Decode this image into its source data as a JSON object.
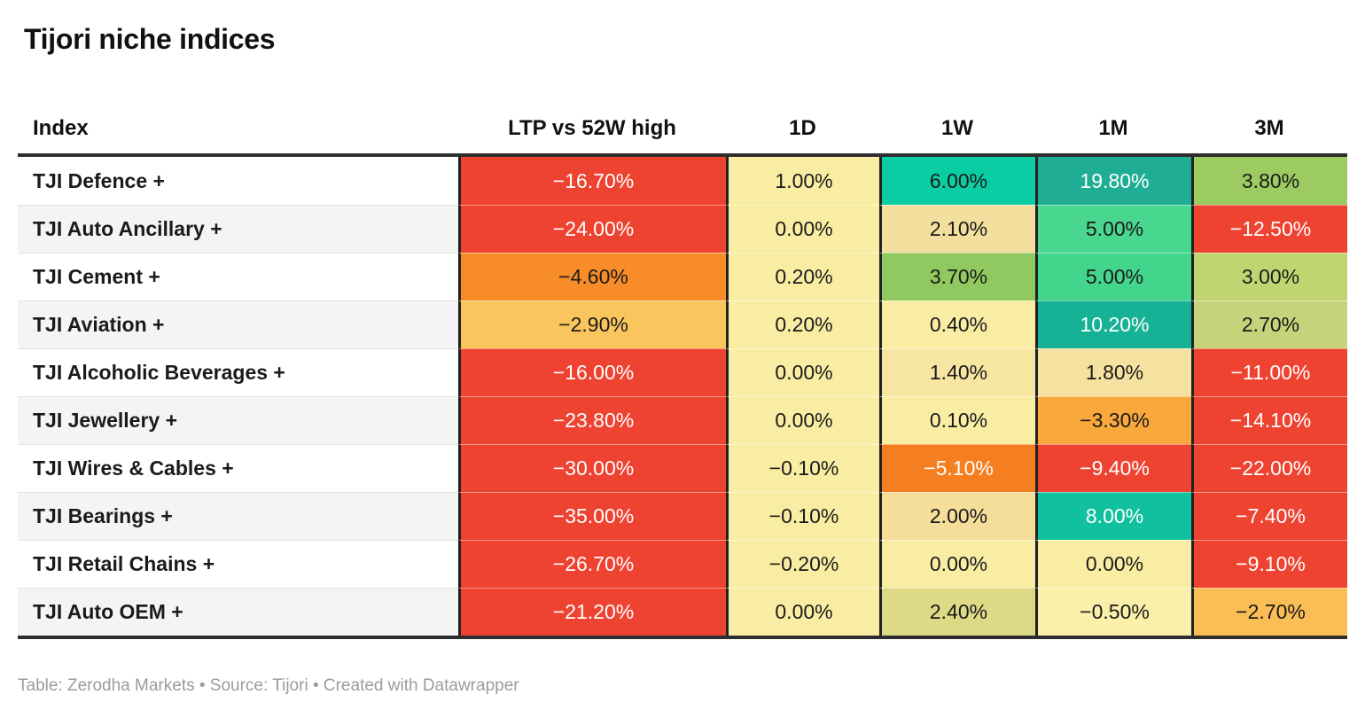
{
  "title": "Tijori niche indices",
  "footer": "Table: Zerodha Markets • Source: Tijori • Created with Datawrapper",
  "table": {
    "header": {
      "columns": [
        "Index",
        "LTP vs 52W high",
        "1D",
        "1W",
        "1M",
        "3M"
      ]
    },
    "rows": [
      {
        "name": "TJI Defence +",
        "cells": [
          {
            "v": "−16.70%",
            "bg": "#ee4331",
            "fg": "#ffffff"
          },
          {
            "v": "1.00%",
            "bg": "#f9eda3",
            "fg": "#1a1a1a"
          },
          {
            "v": "6.00%",
            "bg": "#0bcda4",
            "fg": "#1a1a1a"
          },
          {
            "v": "19.80%",
            "bg": "#1fae93",
            "fg": "#ffffff"
          },
          {
            "v": "3.80%",
            "bg": "#9ccb62",
            "fg": "#1a1a1a"
          }
        ]
      },
      {
        "name": "TJI Auto Ancillary +",
        "cells": [
          {
            "v": "−24.00%",
            "bg": "#ee4331",
            "fg": "#ffffff"
          },
          {
            "v": "0.00%",
            "bg": "#f9eda3",
            "fg": "#1a1a1a"
          },
          {
            "v": "2.10%",
            "bg": "#f3df9d",
            "fg": "#1a1a1a"
          },
          {
            "v": "5.00%",
            "bg": "#49d68f",
            "fg": "#1a1a1a"
          },
          {
            "v": "−12.50%",
            "bg": "#ee4331",
            "fg": "#ffffff"
          }
        ]
      },
      {
        "name": "TJI Cement +",
        "cells": [
          {
            "v": "−4.60%",
            "bg": "#f78c29",
            "fg": "#1a1a1a"
          },
          {
            "v": "0.20%",
            "bg": "#f9eda3",
            "fg": "#1a1a1a"
          },
          {
            "v": "3.70%",
            "bg": "#90c95f",
            "fg": "#1a1a1a"
          },
          {
            "v": "5.00%",
            "bg": "#44d58d",
            "fg": "#1a1a1a"
          },
          {
            "v": "3.00%",
            "bg": "#c0d571",
            "fg": "#1a1a1a"
          }
        ]
      },
      {
        "name": "TJI Aviation +",
        "cells": [
          {
            "v": "−2.90%",
            "bg": "#fbc55e",
            "fg": "#1a1a1a"
          },
          {
            "v": "0.20%",
            "bg": "#f9eda3",
            "fg": "#1a1a1a"
          },
          {
            "v": "0.40%",
            "bg": "#f9eda3",
            "fg": "#1a1a1a"
          },
          {
            "v": "10.20%",
            "bg": "#17b295",
            "fg": "#ffffff"
          },
          {
            "v": "2.70%",
            "bg": "#c6d37a",
            "fg": "#1a1a1a"
          }
        ]
      },
      {
        "name": "TJI Alcoholic Beverages +",
        "cells": [
          {
            "v": "−16.00%",
            "bg": "#ee4331",
            "fg": "#ffffff"
          },
          {
            "v": "0.00%",
            "bg": "#f9eda3",
            "fg": "#1a1a1a"
          },
          {
            "v": "1.40%",
            "bg": "#f7e6a2",
            "fg": "#1a1a1a"
          },
          {
            "v": "1.80%",
            "bg": "#f6e2a0",
            "fg": "#1a1a1a"
          },
          {
            "v": "−11.00%",
            "bg": "#ee4331",
            "fg": "#ffffff"
          }
        ]
      },
      {
        "name": "TJI Jewellery +",
        "cells": [
          {
            "v": "−23.80%",
            "bg": "#ee4331",
            "fg": "#ffffff"
          },
          {
            "v": "0.00%",
            "bg": "#f9eda3",
            "fg": "#1a1a1a"
          },
          {
            "v": "0.10%",
            "bg": "#f9eda3",
            "fg": "#1a1a1a"
          },
          {
            "v": "−3.30%",
            "bg": "#f9a83c",
            "fg": "#1a1a1a"
          },
          {
            "v": "−14.10%",
            "bg": "#ee4331",
            "fg": "#ffffff"
          }
        ]
      },
      {
        "name": "TJI Wires & Cables +",
        "cells": [
          {
            "v": "−30.00%",
            "bg": "#ee4331",
            "fg": "#ffffff"
          },
          {
            "v": "−0.10%",
            "bg": "#f9eda3",
            "fg": "#1a1a1a"
          },
          {
            "v": "−5.10%",
            "bg": "#f57f20",
            "fg": "#ffffff"
          },
          {
            "v": "−9.40%",
            "bg": "#ee4331",
            "fg": "#ffffff"
          },
          {
            "v": "−22.00%",
            "bg": "#ee4331",
            "fg": "#ffffff"
          }
        ]
      },
      {
        "name": "TJI Bearings +",
        "cells": [
          {
            "v": "−35.00%",
            "bg": "#ee4331",
            "fg": "#ffffff"
          },
          {
            "v": "−0.10%",
            "bg": "#f9eda3",
            "fg": "#1a1a1a"
          },
          {
            "v": "2.00%",
            "bg": "#f5dd9a",
            "fg": "#1a1a1a"
          },
          {
            "v": "8.00%",
            "bg": "#10c09e",
            "fg": "#ffffff"
          },
          {
            "v": "−7.40%",
            "bg": "#ee4331",
            "fg": "#ffffff"
          }
        ]
      },
      {
        "name": "TJI Retail Chains +",
        "cells": [
          {
            "v": "−26.70%",
            "bg": "#ee4331",
            "fg": "#ffffff"
          },
          {
            "v": "−0.20%",
            "bg": "#f9eda3",
            "fg": "#1a1a1a"
          },
          {
            "v": "0.00%",
            "bg": "#f9eda3",
            "fg": "#1a1a1a"
          },
          {
            "v": "0.00%",
            "bg": "#f9eda3",
            "fg": "#1a1a1a"
          },
          {
            "v": "−9.10%",
            "bg": "#ee4331",
            "fg": "#ffffff"
          }
        ]
      },
      {
        "name": "TJI Auto OEM +",
        "cells": [
          {
            "v": "−21.20%",
            "bg": "#ee4331",
            "fg": "#ffffff"
          },
          {
            "v": "0.00%",
            "bg": "#f9eda3",
            "fg": "#1a1a1a"
          },
          {
            "v": "2.40%",
            "bg": "#ded985",
            "fg": "#1a1a1a"
          },
          {
            "v": "−0.50%",
            "bg": "#faf0a9",
            "fg": "#1a1a1a"
          },
          {
            "v": "−2.70%",
            "bg": "#fbbd55",
            "fg": "#1a1a1a"
          }
        ]
      }
    ]
  },
  "colors": {
    "strong_negative": "#ee4331",
    "orange": "#f78c29",
    "amber": "#fbc55e",
    "neutral_yellow": "#f9eda3",
    "yellow_green": "#9ccb62",
    "green": "#44d58d",
    "teal": "#0bcda4",
    "deep_teal": "#1fae93",
    "header_border": "#2e2e2e",
    "stripe": "#f4f4f4",
    "footer_text": "#9b9b9b"
  },
  "chart_data": {
    "type": "table",
    "title": "Tijori niche indices",
    "columns": [
      "Index",
      "LTP vs 52W high",
      "1D",
      "1W",
      "1M",
      "3M"
    ],
    "rows": [
      [
        "TJI Defence +",
        -16.7,
        1.0,
        6.0,
        19.8,
        3.8
      ],
      [
        "TJI Auto Ancillary +",
        -24.0,
        0.0,
        2.1,
        5.0,
        -12.5
      ],
      [
        "TJI Cement +",
        -4.6,
        0.2,
        3.7,
        5.0,
        3.0
      ],
      [
        "TJI Aviation +",
        -2.9,
        0.2,
        0.4,
        10.2,
        2.7
      ],
      [
        "TJI Alcoholic Beverages +",
        -16.0,
        0.0,
        1.4,
        1.8,
        -11.0
      ],
      [
        "TJI Jewellery +",
        -23.8,
        0.0,
        0.1,
        -3.3,
        -14.1
      ],
      [
        "TJI Wires & Cables +",
        -30.0,
        -0.1,
        -5.1,
        -9.4,
        -22.0
      ],
      [
        "TJI Bearings +",
        -35.0,
        -0.1,
        2.0,
        8.0,
        -7.4
      ],
      [
        "TJI Retail Chains +",
        -26.7,
        -0.2,
        0.0,
        0.0,
        -9.1
      ],
      [
        "TJI Auto OEM +",
        -21.2,
        0.0,
        2.4,
        -0.5,
        -2.7
      ]
    ],
    "units": "percent",
    "style": "heatmap table: red = negative, yellow = near zero, green/teal = positive"
  }
}
